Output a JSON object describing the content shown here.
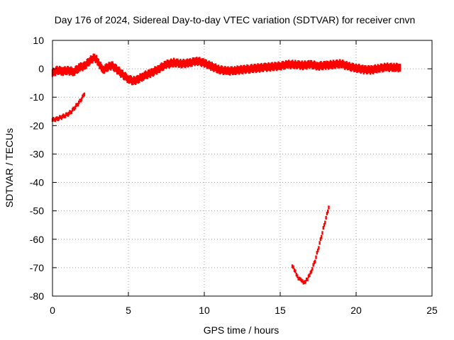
{
  "chart_data": {
    "type": "scatter",
    "title": "Day 176 of 2024, Sidereal Day-to-day VTEC variation (SDTVAR) for receiver cnvn",
    "xlabel": "GPS time / hours",
    "ylabel": "SDTVAR / TECUs",
    "xlim": [
      0,
      25
    ],
    "ylim": [
      -80,
      10
    ],
    "xticks": [
      0,
      5,
      10,
      15,
      20,
      25
    ],
    "yticks": [
      10,
      0,
      -10,
      -20,
      -30,
      -40,
      -50,
      -60,
      -70,
      -80
    ],
    "xtick_labels": [
      "0",
      "5",
      "10",
      "15",
      "20",
      "25"
    ],
    "ytick_labels": [
      "10",
      "0",
      "-10",
      "-20",
      "-30",
      "-40",
      "-50",
      "-60",
      "-70",
      "-80"
    ],
    "grid": true,
    "legend": "none",
    "series_color": "#ff0000",
    "series": [
      {
        "name": "main",
        "band": 2.2,
        "x": [
          0,
          0.3,
          0.7,
          1.0,
          1.4,
          1.8,
          2.1,
          2.4,
          2.7,
          2.9,
          3.1,
          3.3,
          3.6,
          3.9,
          4.2,
          4.5,
          4.8,
          5.0,
          5.3,
          5.6,
          6.0,
          6.5,
          7.0,
          7.5,
          8.0,
          8.5,
          9.0,
          9.5,
          10.0,
          10.5,
          11.0,
          11.5,
          12.0,
          13.0,
          14.0,
          15.0,
          15.5,
          16.0,
          16.5,
          17.0,
          17.5,
          18.0,
          18.5,
          19.0,
          19.5,
          20.0,
          20.5,
          21.0,
          21.5,
          22.0,
          22.5,
          22.9
        ],
        "y": [
          -1.5,
          -0.5,
          -0.8,
          -0.6,
          -1.0,
          0.5,
          1.0,
          2.5,
          3.8,
          3.5,
          1.5,
          -0.5,
          0.5,
          1.2,
          0.0,
          -1.5,
          -2.8,
          -3.5,
          -4.3,
          -3.8,
          -2.5,
          -1.5,
          0.0,
          1.5,
          2.2,
          1.8,
          2.0,
          2.8,
          2.0,
          0.8,
          -0.3,
          -0.8,
          -0.6,
          0.0,
          0.5,
          1.0,
          1.5,
          1.5,
          1.2,
          1.5,
          1.0,
          1.2,
          1.5,
          1.8,
          0.8,
          0.3,
          -0.3,
          -0.4,
          0.2,
          0.5,
          0.5,
          0.4
        ]
      },
      {
        "name": "early-arc",
        "band": 0.8,
        "x": [
          0,
          0.3,
          0.6,
          0.9,
          1.2,
          1.5,
          1.8,
          2.1
        ],
        "y": [
          -18.0,
          -17.6,
          -17.0,
          -16.3,
          -15.3,
          -13.5,
          -11.5,
          -9.0
        ]
      },
      {
        "name": "late-arc",
        "band": 0.8,
        "x": [
          15.8,
          16.0,
          16.2,
          16.4,
          16.6,
          16.8,
          17.0,
          17.3,
          17.6,
          17.9,
          18.2
        ],
        "y": [
          -69.5,
          -71.5,
          -73.5,
          -74.8,
          -75.0,
          -74.0,
          -72.0,
          -67.5,
          -61.5,
          -55.0,
          -48.8
        ]
      }
    ]
  }
}
